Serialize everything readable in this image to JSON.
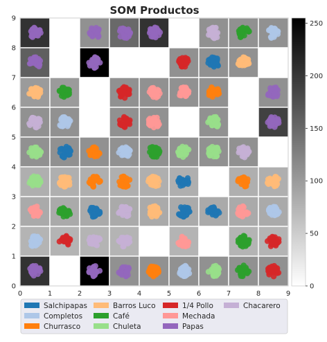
{
  "chart_data": {
    "type": "heatmap",
    "title": "SOM Productos",
    "xlim": [
      0,
      9
    ],
    "ylim": [
      0,
      9
    ],
    "x_ticks": [
      "0",
      "1",
      "2",
      "3",
      "4",
      "5",
      "6",
      "7",
      "8",
      "9"
    ],
    "y_ticks": [
      "0",
      "1",
      "2",
      "3",
      "4",
      "5",
      "6",
      "7",
      "8",
      "9"
    ],
    "colorbar": {
      "min": 0,
      "max": 255,
      "ticks": [
        "0",
        "50",
        "100",
        "150",
        "200",
        "250"
      ],
      "colormap": "gray_r"
    },
    "cells": [
      {
        "col": 0,
        "row": 8,
        "shade": 205
      },
      {
        "col": 1,
        "row": 8,
        "shade": 0
      },
      {
        "col": 2,
        "row": 8,
        "shade": 110
      },
      {
        "col": 3,
        "row": 8,
        "shade": 150
      },
      {
        "col": 4,
        "row": 8,
        "shade": 205
      },
      {
        "col": 5,
        "row": 8,
        "shade": 0
      },
      {
        "col": 6,
        "row": 8,
        "shade": 110
      },
      {
        "col": 7,
        "row": 8,
        "shade": 110
      },
      {
        "col": 8,
        "row": 8,
        "shade": 110
      },
      {
        "col": 0,
        "row": 7,
        "shade": 160
      },
      {
        "col": 1,
        "row": 7,
        "shade": 0
      },
      {
        "col": 2,
        "row": 7,
        "shade": 255
      },
      {
        "col": 3,
        "row": 7,
        "shade": 0
      },
      {
        "col": 4,
        "row": 7,
        "shade": 0
      },
      {
        "col": 5,
        "row": 7,
        "shade": 110
      },
      {
        "col": 6,
        "row": 7,
        "shade": 110
      },
      {
        "col": 7,
        "row": 7,
        "shade": 110
      },
      {
        "col": 8,
        "row": 7,
        "shade": 0
      },
      {
        "col": 0,
        "row": 6,
        "shade": 100
      },
      {
        "col": 1,
        "row": 6,
        "shade": 100
      },
      {
        "col": 2,
        "row": 6,
        "shade": 0
      },
      {
        "col": 3,
        "row": 6,
        "shade": 110
      },
      {
        "col": 4,
        "row": 6,
        "shade": 110
      },
      {
        "col": 5,
        "row": 6,
        "shade": 110
      },
      {
        "col": 6,
        "row": 6,
        "shade": 110
      },
      {
        "col": 7,
        "row": 6,
        "shade": 0
      },
      {
        "col": 8,
        "row": 6,
        "shade": 110
      },
      {
        "col": 0,
        "row": 5,
        "shade": 110
      },
      {
        "col": 1,
        "row": 5,
        "shade": 110
      },
      {
        "col": 2,
        "row": 5,
        "shade": 0
      },
      {
        "col": 3,
        "row": 5,
        "shade": 110
      },
      {
        "col": 4,
        "row": 5,
        "shade": 110
      },
      {
        "col": 5,
        "row": 5,
        "shade": 0
      },
      {
        "col": 6,
        "row": 5,
        "shade": 110
      },
      {
        "col": 7,
        "row": 5,
        "shade": 0
      },
      {
        "col": 8,
        "row": 5,
        "shade": 190
      },
      {
        "col": 0,
        "row": 4,
        "shade": 110
      },
      {
        "col": 1,
        "row": 4,
        "shade": 110
      },
      {
        "col": 2,
        "row": 4,
        "shade": 110
      },
      {
        "col": 3,
        "row": 4,
        "shade": 110
      },
      {
        "col": 4,
        "row": 4,
        "shade": 110
      },
      {
        "col": 5,
        "row": 4,
        "shade": 110
      },
      {
        "col": 6,
        "row": 4,
        "shade": 110
      },
      {
        "col": 7,
        "row": 4,
        "shade": 110
      },
      {
        "col": 8,
        "row": 4,
        "shade": 0
      },
      {
        "col": 0,
        "row": 3,
        "shade": 80
      },
      {
        "col": 1,
        "row": 3,
        "shade": 80
      },
      {
        "col": 2,
        "row": 3,
        "shade": 80
      },
      {
        "col": 3,
        "row": 3,
        "shade": 80
      },
      {
        "col": 4,
        "row": 3,
        "shade": 80
      },
      {
        "col": 5,
        "row": 3,
        "shade": 80
      },
      {
        "col": 6,
        "row": 3,
        "shade": 0
      },
      {
        "col": 7,
        "row": 3,
        "shade": 80
      },
      {
        "col": 8,
        "row": 3,
        "shade": 80
      },
      {
        "col": 0,
        "row": 2,
        "shade": 85
      },
      {
        "col": 1,
        "row": 2,
        "shade": 85
      },
      {
        "col": 2,
        "row": 2,
        "shade": 85
      },
      {
        "col": 3,
        "row": 2,
        "shade": 85
      },
      {
        "col": 4,
        "row": 2,
        "shade": 85
      },
      {
        "col": 5,
        "row": 2,
        "shade": 85
      },
      {
        "col": 6,
        "row": 2,
        "shade": 85
      },
      {
        "col": 7,
        "row": 2,
        "shade": 85
      },
      {
        "col": 8,
        "row": 2,
        "shade": 85
      },
      {
        "col": 0,
        "row": 1,
        "shade": 75
      },
      {
        "col": 1,
        "row": 1,
        "shade": 75
      },
      {
        "col": 2,
        "row": 1,
        "shade": 75
      },
      {
        "col": 3,
        "row": 1,
        "shade": 75
      },
      {
        "col": 4,
        "row": 1,
        "shade": 0
      },
      {
        "col": 5,
        "row": 1,
        "shade": 75
      },
      {
        "col": 6,
        "row": 1,
        "shade": 0
      },
      {
        "col": 7,
        "row": 1,
        "shade": 75
      },
      {
        "col": 8,
        "row": 1,
        "shade": 75
      },
      {
        "col": 0,
        "row": 0,
        "shade": 205
      },
      {
        "col": 1,
        "row": 0,
        "shade": 0
      },
      {
        "col": 2,
        "row": 0,
        "shade": 255
      },
      {
        "col": 3,
        "row": 0,
        "shade": 110
      },
      {
        "col": 4,
        "row": 0,
        "shade": 110
      },
      {
        "col": 5,
        "row": 0,
        "shade": 110
      },
      {
        "col": 6,
        "row": 0,
        "shade": 110
      },
      {
        "col": 7,
        "row": 0,
        "shade": 110
      },
      {
        "col": 8,
        "row": 0,
        "shade": 110
      }
    ],
    "clusters": [
      {
        "col": 0,
        "row": 8,
        "cat": "Papas"
      },
      {
        "col": 2,
        "row": 8,
        "cat": "Papas"
      },
      {
        "col": 3,
        "row": 8,
        "cat": "Papas"
      },
      {
        "col": 4,
        "row": 8,
        "cat": "Papas"
      },
      {
        "col": 6,
        "row": 8,
        "cat": "Chacarero"
      },
      {
        "col": 7,
        "row": 8,
        "cat": "Café"
      },
      {
        "col": 8,
        "row": 8,
        "cat": "Completos"
      },
      {
        "col": 0,
        "row": 7,
        "cat": "Papas"
      },
      {
        "col": 2,
        "row": 7,
        "cat": "Papas"
      },
      {
        "col": 5,
        "row": 7,
        "cat": "1/4 Pollo"
      },
      {
        "col": 6,
        "row": 7,
        "cat": "Salchipapas"
      },
      {
        "col": 7,
        "row": 7,
        "cat": "Barros Luco"
      },
      {
        "col": 0,
        "row": 6,
        "cat": "Barros Luco"
      },
      {
        "col": 1,
        "row": 6,
        "cat": "Café"
      },
      {
        "col": 3,
        "row": 6,
        "cat": "1/4 Pollo"
      },
      {
        "col": 4,
        "row": 6,
        "cat": "Mechada"
      },
      {
        "col": 5,
        "row": 6,
        "cat": "Mechada"
      },
      {
        "col": 6,
        "row": 6,
        "cat": "Churrasco"
      },
      {
        "col": 8,
        "row": 6,
        "cat": "Papas"
      },
      {
        "col": 0,
        "row": 5,
        "cat": "Chacarero"
      },
      {
        "col": 1,
        "row": 5,
        "cat": "Completos"
      },
      {
        "col": 3,
        "row": 5,
        "cat": "1/4 Pollo"
      },
      {
        "col": 4,
        "row": 5,
        "cat": "Mechada"
      },
      {
        "col": 6,
        "row": 5,
        "cat": "Chuleta"
      },
      {
        "col": 8,
        "row": 5,
        "cat": "Papas"
      },
      {
        "col": 0,
        "row": 4,
        "cat": "Chuleta"
      },
      {
        "col": 1,
        "row": 4,
        "cat": "Salchipapas"
      },
      {
        "col": 2,
        "row": 4,
        "cat": "Churrasco"
      },
      {
        "col": 3,
        "row": 4,
        "cat": "Completos"
      },
      {
        "col": 4,
        "row": 4,
        "cat": "Café"
      },
      {
        "col": 5,
        "row": 4,
        "cat": "Chuleta"
      },
      {
        "col": 6,
        "row": 4,
        "cat": "Chuleta"
      },
      {
        "col": 7,
        "row": 4,
        "cat": "Chacarero"
      },
      {
        "col": 0,
        "row": 3,
        "cat": "Chuleta"
      },
      {
        "col": 1,
        "row": 3,
        "cat": "Barros Luco"
      },
      {
        "col": 2,
        "row": 3,
        "cat": "Churrasco"
      },
      {
        "col": 3,
        "row": 3,
        "cat": "Churrasco"
      },
      {
        "col": 4,
        "row": 3,
        "cat": "Barros Luco"
      },
      {
        "col": 5,
        "row": 3,
        "cat": "Salchipapas"
      },
      {
        "col": 7,
        "row": 3,
        "cat": "Churrasco"
      },
      {
        "col": 8,
        "row": 3,
        "cat": "Barros Luco"
      },
      {
        "col": 0,
        "row": 2,
        "cat": "Mechada"
      },
      {
        "col": 1,
        "row": 2,
        "cat": "Café"
      },
      {
        "col": 2,
        "row": 2,
        "cat": "Salchipapas"
      },
      {
        "col": 3,
        "row": 2,
        "cat": "Chacarero"
      },
      {
        "col": 4,
        "row": 2,
        "cat": "Barros Luco"
      },
      {
        "col": 5,
        "row": 2,
        "cat": "Salchipapas"
      },
      {
        "col": 6,
        "row": 2,
        "cat": "Salchipapas"
      },
      {
        "col": 7,
        "row": 2,
        "cat": "Mechada"
      },
      {
        "col": 8,
        "row": 2,
        "cat": "Completos"
      },
      {
        "col": 0,
        "row": 1,
        "cat": "Completos"
      },
      {
        "col": 1,
        "row": 1,
        "cat": "1/4 Pollo"
      },
      {
        "col": 2,
        "row": 1,
        "cat": "Chacarero"
      },
      {
        "col": 3,
        "row": 1,
        "cat": "Chacarero"
      },
      {
        "col": 5,
        "row": 1,
        "cat": "Mechada"
      },
      {
        "col": 7,
        "row": 1,
        "cat": "Café"
      },
      {
        "col": 8,
        "row": 1,
        "cat": "1/4 Pollo"
      },
      {
        "col": 0,
        "row": 0,
        "cat": "Papas"
      },
      {
        "col": 2,
        "row": 0,
        "cat": "Papas"
      },
      {
        "col": 3,
        "row": 0,
        "cat": "Papas"
      },
      {
        "col": 4,
        "row": 0,
        "cat": "Churrasco"
      },
      {
        "col": 5,
        "row": 0,
        "cat": "Completos"
      },
      {
        "col": 6,
        "row": 0,
        "cat": "Chuleta"
      },
      {
        "col": 7,
        "row": 0,
        "cat": "Café"
      },
      {
        "col": 8,
        "row": 0,
        "cat": "1/4 Pollo"
      }
    ],
    "legend": [
      {
        "name": "Salchipapas",
        "color": "#1f77b4"
      },
      {
        "name": "Completos",
        "color": "#aec7e8"
      },
      {
        "name": "Churrasco",
        "color": "#ff7f0e"
      },
      {
        "name": "Barros Luco",
        "color": "#ffbb78"
      },
      {
        "name": "Café",
        "color": "#2ca02c"
      },
      {
        "name": "Chuleta",
        "color": "#98df8a"
      },
      {
        "name": "1/4 Pollo",
        "color": "#d62728"
      },
      {
        "name": "Mechada",
        "color": "#ff9896"
      },
      {
        "name": "Papas",
        "color": "#9467bd"
      },
      {
        "name": "Chacarero",
        "color": "#c5b0d5"
      }
    ],
    "legend_placement": "below"
  }
}
